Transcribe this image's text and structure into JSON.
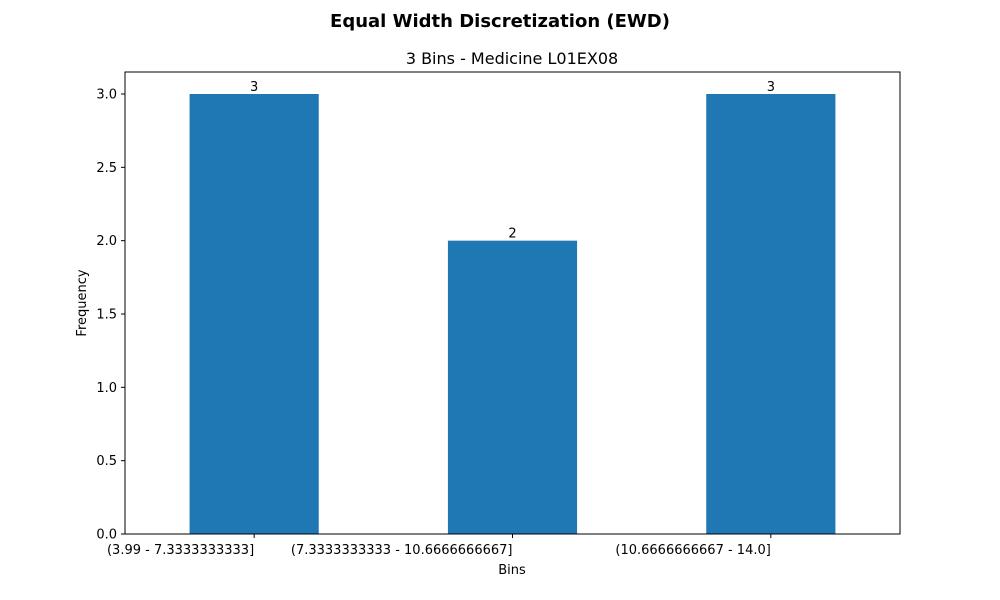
{
  "chart_data": {
    "type": "bar",
    "title": "Equal Width Discretization (EWD)",
    "subtitle": "3 Bins - Medicine L01EX08",
    "xlabel": "Bins",
    "ylabel": "Frequency",
    "categories": [
      "(3.99 - 7.3333333333]",
      "(7.3333333333 - 10.6666666667]",
      "(10.6666666667 - 14.0]"
    ],
    "values": [
      3,
      2,
      3
    ],
    "data_labels": [
      "3",
      "2",
      "3"
    ],
    "ylim": [
      0,
      3.15
    ],
    "yticks": [
      0.0,
      0.5,
      1.0,
      1.5,
      2.0,
      2.5,
      3.0
    ],
    "ytick_labels": [
      "0.0",
      "0.5",
      "1.0",
      "1.5",
      "2.0",
      "2.5",
      "3.0"
    ],
    "bar_color": "#1f77b4",
    "grid": false,
    "legend": false
  }
}
